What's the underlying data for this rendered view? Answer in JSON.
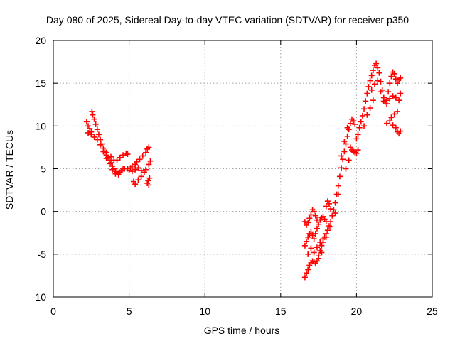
{
  "chart_data": {
    "type": "scatter",
    "title": "Day 080 of 2025, Sidereal Day-to-day VTEC variation (SDTVAR) for receiver p350",
    "xlabel": "GPS time / hours",
    "ylabel": "SDTVAR / TECUs",
    "xlim": [
      0,
      25
    ],
    "ylim": [
      -10,
      20
    ],
    "xticks": [
      "0",
      "5",
      "10",
      "15",
      "20",
      "25"
    ],
    "yticks": [
      "-10",
      "-5",
      "0",
      "5",
      "10",
      "15",
      "20"
    ],
    "grid": true,
    "marker": "+",
    "marker_color": "#ff0000",
    "series": [
      {
        "points": [
          [
            2.2,
            10.5
          ],
          [
            2.3,
            10.0
          ],
          [
            2.4,
            9.7
          ],
          [
            2.5,
            9.3
          ],
          [
            2.55,
            11.7
          ],
          [
            2.6,
            11.3
          ],
          [
            2.7,
            10.8
          ],
          [
            2.8,
            10.2
          ],
          [
            2.9,
            9.6
          ],
          [
            3.0,
            9.0
          ],
          [
            3.1,
            8.4
          ],
          [
            3.2,
            7.9
          ],
          [
            3.3,
            7.4
          ],
          [
            3.4,
            7.0
          ],
          [
            3.5,
            6.6
          ],
          [
            3.6,
            6.3
          ],
          [
            3.7,
            6.0
          ],
          [
            3.8,
            5.7
          ],
          [
            3.9,
            5.3
          ],
          [
            4.0,
            5.0
          ],
          [
            4.1,
            4.7
          ],
          [
            4.2,
            4.6
          ],
          [
            4.3,
            4.5
          ],
          [
            4.4,
            4.6
          ],
          [
            4.5,
            4.8
          ],
          [
            4.6,
            5.0
          ],
          [
            2.3,
            9.2
          ],
          [
            2.5,
            9.0
          ],
          [
            2.7,
            8.7
          ],
          [
            2.9,
            8.4
          ],
          [
            3.1,
            7.8
          ],
          [
            3.3,
            7.0
          ],
          [
            3.5,
            6.2
          ],
          [
            3.7,
            5.6
          ],
          [
            3.9,
            4.9
          ],
          [
            4.1,
            4.4
          ],
          [
            4.3,
            4.3
          ],
          [
            3.5,
            6.9
          ],
          [
            3.8,
            6.4
          ],
          [
            4.0,
            6.0
          ],
          [
            4.2,
            6.0
          ],
          [
            4.4,
            6.3
          ],
          [
            4.6,
            6.6
          ],
          [
            4.8,
            6.8
          ],
          [
            4.9,
            6.7
          ],
          [
            4.7,
            5.0
          ],
          [
            4.9,
            5.0
          ],
          [
            5.1,
            5.1
          ],
          [
            5.2,
            5.3
          ],
          [
            5.4,
            5.5
          ],
          [
            5.5,
            5.8
          ],
          [
            5.7,
            6.1
          ],
          [
            5.9,
            6.5
          ],
          [
            6.1,
            6.9
          ],
          [
            6.2,
            7.3
          ],
          [
            6.3,
            7.5
          ],
          [
            5.0,
            4.8
          ],
          [
            5.2,
            4.7
          ],
          [
            5.4,
            4.9
          ],
          [
            5.6,
            5.1
          ],
          [
            5.8,
            4.8
          ],
          [
            6.0,
            4.6
          ],
          [
            6.1,
            4.9
          ],
          [
            6.3,
            5.5
          ],
          [
            6.4,
            5.9
          ],
          [
            5.3,
            3.5
          ],
          [
            5.4,
            3.2
          ],
          [
            5.6,
            3.7
          ],
          [
            5.8,
            4.1
          ],
          [
            6.2,
            3.3
          ],
          [
            6.25,
            3.6
          ],
          [
            6.3,
            3.1
          ],
          [
            6.35,
            3.9
          ]
        ]
      },
      {
        "points": [
          [
            16.6,
            -7.7
          ],
          [
            16.7,
            -7.2
          ],
          [
            16.8,
            -6.8
          ],
          [
            16.9,
            -6.3
          ],
          [
            17.0,
            -6.0
          ],
          [
            17.1,
            -5.8
          ],
          [
            17.2,
            -5.9
          ],
          [
            17.3,
            -6.1
          ],
          [
            17.4,
            -5.8
          ],
          [
            17.5,
            -5.2
          ],
          [
            17.6,
            -4.6
          ],
          [
            17.7,
            -4.0
          ],
          [
            17.8,
            -3.6
          ],
          [
            17.9,
            -3.0
          ],
          [
            18.0,
            -2.6
          ],
          [
            18.1,
            -2.2
          ],
          [
            18.2,
            -1.7
          ],
          [
            18.3,
            -1.2
          ],
          [
            16.6,
            -4.0
          ],
          [
            16.7,
            -3.5
          ],
          [
            16.8,
            -3.0
          ],
          [
            16.9,
            -2.6
          ],
          [
            17.0,
            -2.4
          ],
          [
            17.1,
            -2.8
          ],
          [
            17.2,
            -3.2
          ],
          [
            17.3,
            -2.6
          ],
          [
            17.4,
            -2.0
          ],
          [
            17.5,
            -1.5
          ],
          [
            17.6,
            -1.0
          ],
          [
            17.7,
            -0.7
          ],
          [
            17.8,
            -0.6
          ],
          [
            17.9,
            -0.9
          ],
          [
            18.0,
            -1.2
          ],
          [
            16.6,
            -1.2
          ],
          [
            16.7,
            -1.6
          ],
          [
            16.8,
            -1.3
          ],
          [
            16.9,
            -0.8
          ],
          [
            17.0,
            -0.4
          ],
          [
            17.1,
            0.2
          ],
          [
            17.2,
            0.0
          ],
          [
            17.3,
            -0.5
          ],
          [
            17.4,
            -1.0
          ],
          [
            16.8,
            -5.0
          ],
          [
            17.0,
            -4.3
          ],
          [
            17.2,
            -4.8
          ],
          [
            17.4,
            -4.2
          ],
          [
            17.6,
            -3.6
          ],
          [
            17.8,
            -3.2
          ],
          [
            18.0,
            0.6
          ],
          [
            18.1,
            1.2
          ],
          [
            18.2,
            0.9
          ],
          [
            18.3,
            0.3
          ],
          [
            18.4,
            -0.5
          ],
          [
            18.5,
            0.2
          ],
          [
            18.6,
            1.0
          ],
          [
            18.7,
            2.0
          ],
          [
            18.8,
            3.0
          ],
          [
            18.9,
            4.1
          ],
          [
            19.0,
            5.1
          ],
          [
            19.1,
            6.1
          ],
          [
            19.2,
            7.0
          ],
          [
            19.3,
            7.9
          ],
          [
            19.4,
            8.8
          ],
          [
            19.5,
            9.6
          ],
          [
            19.6,
            10.3
          ],
          [
            19.7,
            10.8
          ],
          [
            19.8,
            10.6
          ],
          [
            19.9,
            10.2
          ],
          [
            19.0,
            6.5
          ],
          [
            19.2,
            8.2
          ],
          [
            19.4,
            9.8
          ],
          [
            19.6,
            7.5
          ],
          [
            19.7,
            7.2
          ],
          [
            19.8,
            7.0
          ],
          [
            19.9,
            6.9
          ],
          [
            20.0,
            6.8
          ],
          [
            20.1,
            7.2
          ],
          [
            20.0,
            8.5
          ],
          [
            20.1,
            9.0
          ],
          [
            20.2,
            9.8
          ],
          [
            20.3,
            10.5
          ],
          [
            20.4,
            11.2
          ],
          [
            20.5,
            12.0
          ],
          [
            20.6,
            12.9
          ],
          [
            20.7,
            13.8
          ],
          [
            20.8,
            14.6
          ],
          [
            20.9,
            15.3
          ],
          [
            21.0,
            15.9
          ],
          [
            21.1,
            16.5
          ],
          [
            21.2,
            17.1
          ],
          [
            21.3,
            17.3
          ],
          [
            21.4,
            16.8
          ],
          [
            21.5,
            16.2
          ],
          [
            21.6,
            15.2
          ],
          [
            21.7,
            14.2
          ],
          [
            21.8,
            13.3
          ],
          [
            21.9,
            12.8
          ],
          [
            22.0,
            13.0
          ],
          [
            22.1,
            14.0
          ],
          [
            22.2,
            15.0
          ],
          [
            22.3,
            15.8
          ],
          [
            22.4,
            16.3
          ],
          [
            22.5,
            16.1
          ],
          [
            22.6,
            15.5
          ],
          [
            22.7,
            15.0
          ],
          [
            22.8,
            15.4
          ],
          [
            22.9,
            15.6
          ],
          [
            21.0,
            14.2
          ],
          [
            21.2,
            14.9
          ],
          [
            21.4,
            15.3
          ],
          [
            21.6,
            14.0
          ],
          [
            21.8,
            12.9
          ],
          [
            22.0,
            12.6
          ],
          [
            22.2,
            13.2
          ],
          [
            22.4,
            13.5
          ],
          [
            22.6,
            13.3
          ],
          [
            22.8,
            13.0
          ],
          [
            22.9,
            13.8
          ],
          [
            22.0,
            10.3
          ],
          [
            22.2,
            10.6
          ],
          [
            22.4,
            10.1
          ],
          [
            22.6,
            9.8
          ],
          [
            22.7,
            9.3
          ],
          [
            22.8,
            9.1
          ],
          [
            22.9,
            9.4
          ],
          [
            22.3,
            11.0
          ],
          [
            22.5,
            11.4
          ],
          [
            22.7,
            11.7
          ],
          [
            20.5,
            10.0
          ],
          [
            20.7,
            11.3
          ],
          [
            20.9,
            12.1
          ],
          [
            21.1,
            13.0
          ],
          [
            19.3,
            5.0
          ],
          [
            19.5,
            6.0
          ],
          [
            18.8,
            2.0
          ],
          [
            18.6,
            -0.2
          ],
          [
            18.3,
            -1.8
          ],
          [
            18.0,
            -3.0
          ],
          [
            17.7,
            -4.8
          ],
          [
            17.5,
            -5.5
          ]
        ]
      }
    ]
  }
}
